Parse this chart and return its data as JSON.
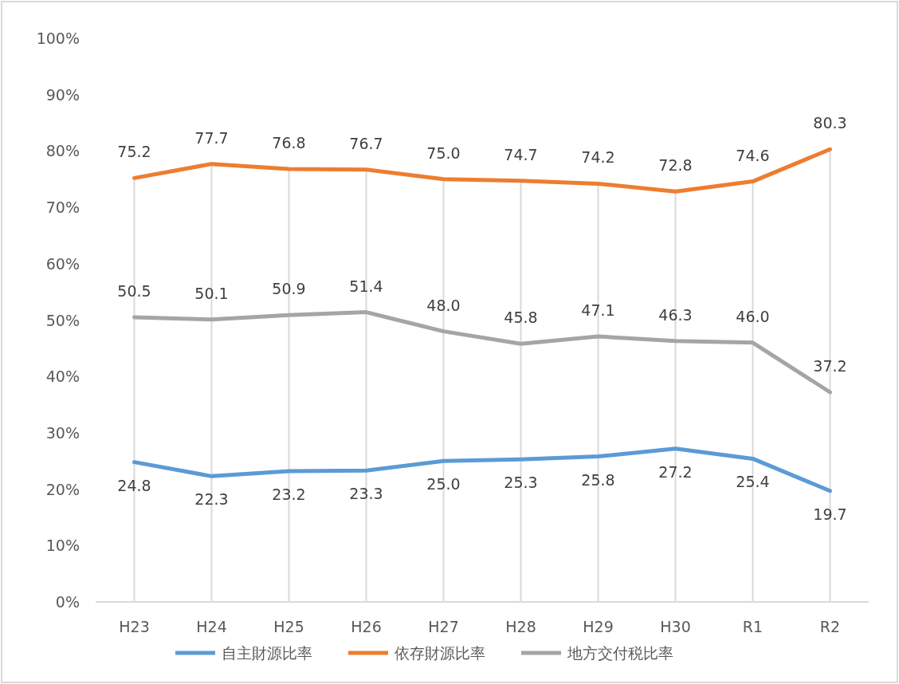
{
  "chart_data": {
    "type": "line",
    "categories": [
      "H23",
      "H24",
      "H25",
      "H26",
      "H27",
      "H28",
      "H29",
      "H30",
      "R1",
      "R2"
    ],
    "series": [
      {
        "name": "自主財源比率",
        "color": "#5b9bd5",
        "values": [
          24.8,
          22.3,
          23.2,
          23.3,
          25.0,
          25.3,
          25.8,
          27.2,
          25.4,
          19.7
        ],
        "value_labels": [
          "24.8",
          "22.3",
          "23.2",
          "23.3",
          "25.0",
          "25.3",
          "25.8",
          "27.2",
          "25.4",
          "19.7"
        ]
      },
      {
        "name": "依存財源比率",
        "color": "#ed7d31",
        "values": [
          75.2,
          77.7,
          76.8,
          76.7,
          75.0,
          74.7,
          74.2,
          72.8,
          74.6,
          80.3
        ],
        "value_labels": [
          "75.2",
          "77.7",
          "76.8",
          "76.7",
          "75.0",
          "74.7",
          "74.2",
          "72.8",
          "74.6",
          "80.3"
        ]
      },
      {
        "name": "地方交付税比率",
        "color": "#a5a5a5",
        "values": [
          50.5,
          50.1,
          50.9,
          51.4,
          48.0,
          45.8,
          47.1,
          46.3,
          46.0,
          37.2
        ],
        "value_labels": [
          "50.5",
          "50.1",
          "50.9",
          "51.4",
          "48.0",
          "45.8",
          "47.1",
          "46.3",
          "46.0",
          "37.2"
        ]
      }
    ],
    "ylim": [
      0,
      100
    ],
    "yticks": [
      {
        "value": 0,
        "label": "0%"
      },
      {
        "value": 10,
        "label": "10%"
      },
      {
        "value": 20,
        "label": "20%"
      },
      {
        "value": 30,
        "label": "30%"
      },
      {
        "value": 40,
        "label": "40%"
      },
      {
        "value": 50,
        "label": "50%"
      },
      {
        "value": 60,
        "label": "60%"
      },
      {
        "value": 70,
        "label": "70%"
      },
      {
        "value": 80,
        "label": "80%"
      },
      {
        "value": 90,
        "label": "90%"
      },
      {
        "value": 100,
        "label": "100%"
      }
    ],
    "grid": "x",
    "legend": "bottom",
    "marker": "none",
    "line_style": "solid"
  }
}
